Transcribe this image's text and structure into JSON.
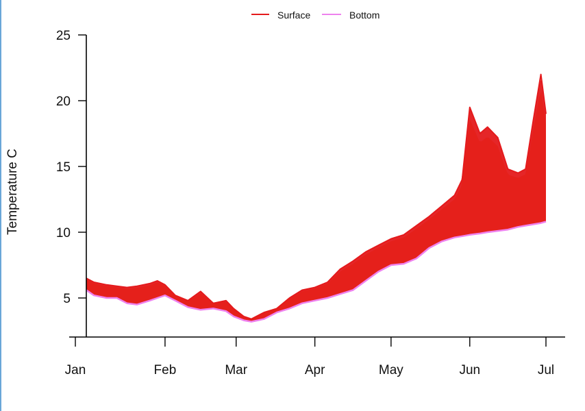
{
  "chart_data": {
    "type": "line",
    "title": "",
    "xlabel": "",
    "ylabel": "Temperature C",
    "ylim": [
      2,
      25
    ],
    "xlim_days": [
      -0.3,
      186
    ],
    "y_ticks": [
      5,
      10,
      15,
      20,
      25
    ],
    "x_ticks": [
      {
        "label": "Jan",
        "day": 0
      },
      {
        "label": "Feb",
        "day": 31
      },
      {
        "label": "Mar",
        "day": 59
      },
      {
        "label": "Apr",
        "day": 90
      },
      {
        "label": "May",
        "day": 120
      },
      {
        "label": "Jun",
        "day": 151
      },
      {
        "label": "Jul",
        "day": 181
      }
    ],
    "legend": {
      "placement": "top",
      "entries": [
        {
          "name": "Surface",
          "color": "#e41a1c"
        },
        {
          "name": "Bottom",
          "color": "#ee82ee"
        }
      ]
    },
    "depth_palette": [
      "#e41a1c",
      "#ff7f00",
      "#ffb000",
      "#ffd700",
      "#ffff33",
      "#adff2f",
      "#33cc33",
      "#00ced1",
      "#1e90ff",
      "#0000cd",
      "#8a2be2",
      "#ee82ee"
    ],
    "series": [
      {
        "name": "Surface",
        "color": "#e41a1c",
        "days": [
          0,
          3,
          8,
          12,
          16,
          20,
          25,
          28,
          31,
          35,
          40,
          45,
          50,
          55,
          58,
          62,
          65,
          70,
          75,
          80,
          85,
          90,
          95,
          100,
          105,
          110,
          115,
          120,
          125,
          130,
          135,
          140,
          145,
          148,
          151,
          155,
          158,
          162,
          166,
          170,
          173,
          176,
          179,
          181
        ],
        "values": [
          6.5,
          6.2,
          6.0,
          5.9,
          5.8,
          5.9,
          6.1,
          6.3,
          6.0,
          5.2,
          4.8,
          5.5,
          4.6,
          4.8,
          4.2,
          3.6,
          3.4,
          3.9,
          4.2,
          5.0,
          5.6,
          5.8,
          6.2,
          7.2,
          7.8,
          8.5,
          9.0,
          9.5,
          9.8,
          10.5,
          11.2,
          12.0,
          12.8,
          14.0,
          19.5,
          17.5,
          18.0,
          17.2,
          14.8,
          14.5,
          14.8,
          18.5,
          22.0,
          19.0
        ]
      },
      {
        "name": "Bottom",
        "color": "#ee82ee",
        "days": [
          0,
          3,
          8,
          12,
          16,
          20,
          25,
          28,
          31,
          35,
          40,
          45,
          50,
          55,
          58,
          62,
          65,
          70,
          75,
          80,
          85,
          90,
          95,
          100,
          105,
          110,
          115,
          120,
          125,
          130,
          135,
          140,
          145,
          148,
          151,
          155,
          158,
          162,
          166,
          170,
          173,
          176,
          179,
          181
        ],
        "values": [
          5.6,
          5.2,
          5.0,
          5.0,
          4.6,
          4.5,
          4.8,
          5.0,
          5.2,
          4.8,
          4.3,
          4.1,
          4.2,
          4.0,
          3.6,
          3.3,
          3.2,
          3.4,
          3.9,
          4.2,
          4.6,
          4.8,
          5.0,
          5.3,
          5.6,
          6.3,
          7.0,
          7.5,
          7.6,
          8.0,
          8.8,
          9.3,
          9.6,
          9.7,
          9.8,
          9.9,
          10.0,
          10.1,
          10.2,
          10.4,
          10.5,
          10.6,
          10.7,
          10.8
        ]
      }
    ]
  }
}
